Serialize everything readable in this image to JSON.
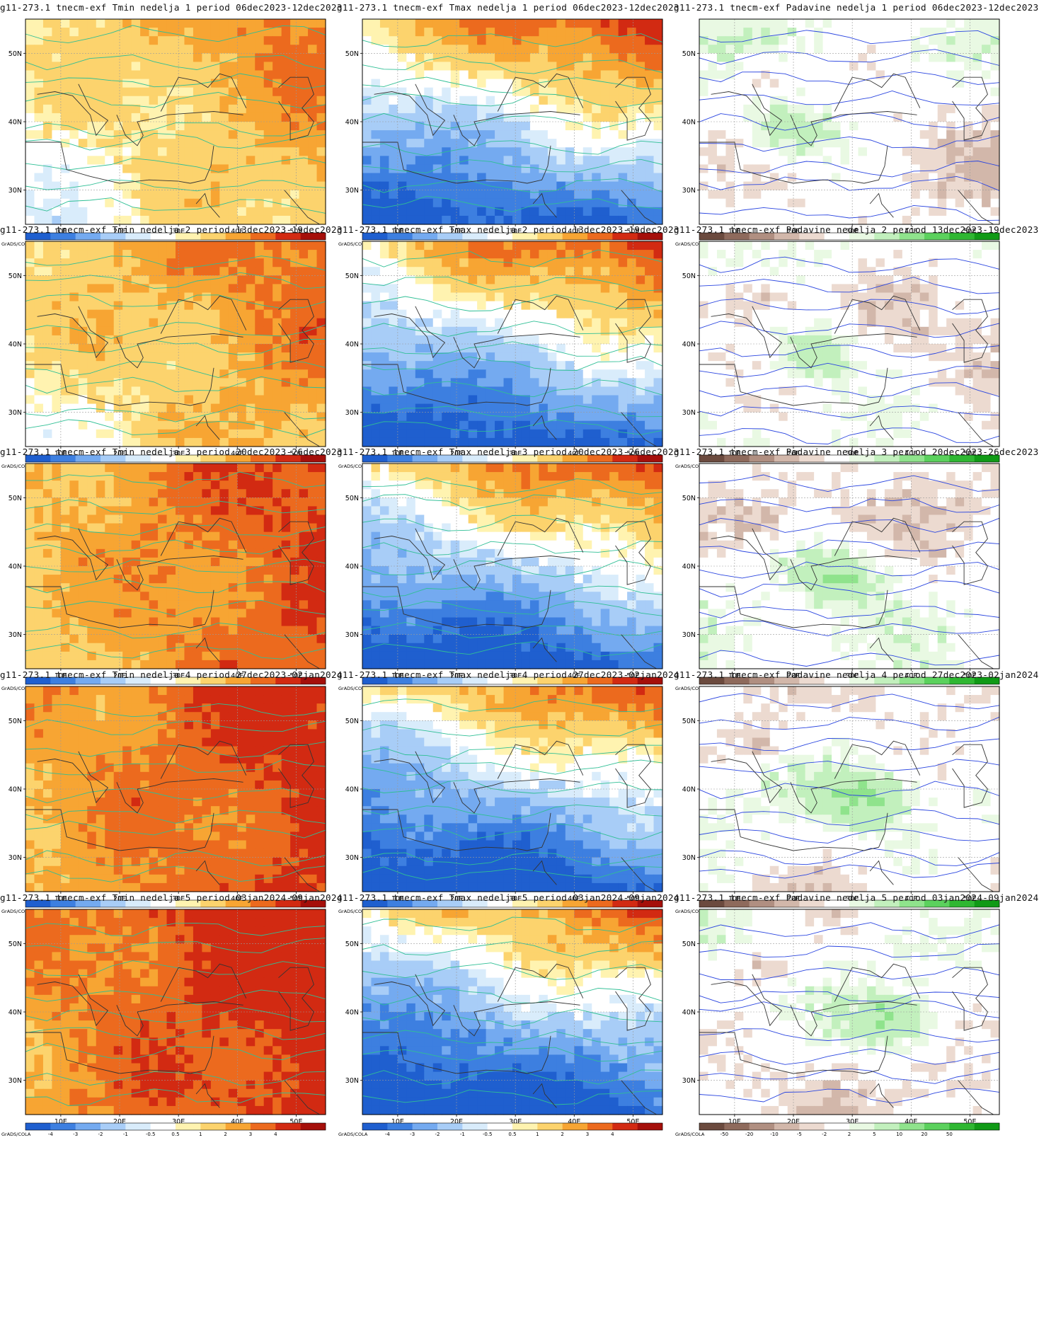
{
  "rows": [
    {
      "week": 1,
      "panels": [
        {
          "kind": "tmin",
          "title": "g11-273.1 tnecm-exf Tmin nedelja 1 period 06dec2023-12dec2023"
        },
        {
          "kind": "tmax",
          "title": "g11-273.1 tnecm-exf Tmax nedelja 1 period 06dec2023-12dec2023"
        },
        {
          "kind": "precip",
          "title": "g11-273.1 tnecm-exf Padavine nedelja 1 period 06dec2023-12dec2023"
        }
      ]
    },
    {
      "week": 2,
      "panels": [
        {
          "kind": "tmin",
          "title": "g11-273.1 tnecm-exf Tmin nedelja 2 period 13dec2023-19dec2023"
        },
        {
          "kind": "tmax",
          "title": "g11-273.1 tnecm-exf Tmax nedelja 2 period 13dec2023-19dec2023"
        },
        {
          "kind": "precip",
          "title": "g11-273.1 tnecm-exf Padavine nedelja 2 period 13dec2023-19dec2023"
        }
      ]
    },
    {
      "week": 3,
      "panels": [
        {
          "kind": "tmin",
          "title": "g11-273.1 tnecm-exf Tmin nedelja 3 period 20dec2023-26dec2023"
        },
        {
          "kind": "tmax",
          "title": "g11-273.1 tnecm-exf Tmax nedelja 3 period 20dec2023-26dec2023"
        },
        {
          "kind": "precip",
          "title": "g11-273.1 tnecm-exf Padavine nedelja 3 period 20dec2023-26dec2023"
        }
      ]
    },
    {
      "week": 4,
      "panels": [
        {
          "kind": "tmin",
          "title": "g11-273.1 tnecm-exf Tmin nedelja 4 period 27dec2023-02jan2024"
        },
        {
          "kind": "tmax",
          "title": "g11-273.1 tnecm-exf Tmax nedelja 4 period 27dec2023-02jan2024"
        },
        {
          "kind": "precip",
          "title": "g11-273.1 tnecm-exf Padavine nedelja 4 period 27dec2023-02jan2024"
        }
      ]
    },
    {
      "week": 5,
      "panels": [
        {
          "kind": "tmin",
          "title": "g11-273.1 tnecm-exf Tmin nedelja 5 period 03jan2024-09jan2024"
        },
        {
          "kind": "tmax",
          "title": "g11-273.1 tnecm-exf Tmax nedelja 5 period 03jan2024-09jan2024"
        },
        {
          "kind": "precip",
          "title": "g11-273.1 tnecm-exf Padavine nedelja 5 period 03jan2024-09jan2024"
        }
      ]
    }
  ],
  "axes": {
    "x_ticks": [
      "10E",
      "20E",
      "30E",
      "40E",
      "50E"
    ],
    "y_ticks": [
      "50N",
      "40N",
      "30N"
    ],
    "x_values": [
      10,
      20,
      30,
      40,
      50
    ],
    "y_values": [
      50,
      40,
      30
    ],
    "lon_range": [
      4,
      55
    ],
    "lat_range": [
      25,
      55
    ]
  },
  "colorbars": {
    "temperature": {
      "labels": [
        "-4",
        "-3",
        "-2",
        "-1",
        "-0.5",
        "0.5",
        "1",
        "2",
        "3",
        "4"
      ],
      "colors": [
        "#1f5fcf",
        "#3d7fe0",
        "#74aaf0",
        "#a8cdf7",
        "#d9ecfb",
        "#ffffff",
        "#fff3b0",
        "#fcd36d",
        "#f7a533",
        "#ec6a1e",
        "#d22a12",
        "#a50f0a"
      ]
    },
    "precipitation": {
      "labels": [
        "-50",
        "-20",
        "-10",
        "-5",
        "-2",
        "2",
        "5",
        "10",
        "20",
        "50"
      ],
      "colors": [
        "#6b4a3e",
        "#8e6a5c",
        "#b08f81",
        "#d2b7aa",
        "#ecdad0",
        "#ffffff",
        "#e9f9e3",
        "#c2f0bd",
        "#8fe38c",
        "#5bd15d",
        "#2fb732",
        "#109a16"
      ]
    }
  },
  "grads_label": "GrADS/COLA"
}
